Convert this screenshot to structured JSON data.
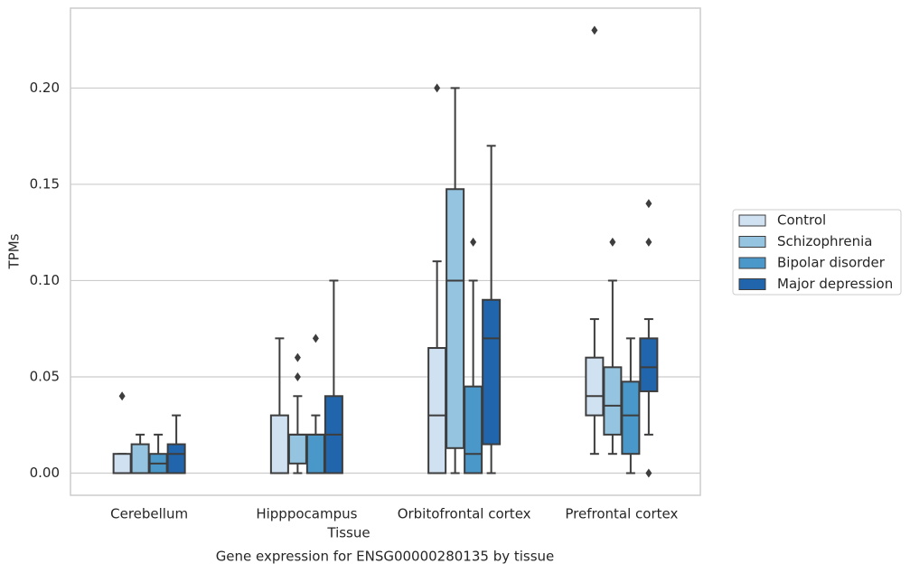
{
  "chart_data": {
    "type": "box",
    "xlabel": "Tissue",
    "ylabel": "TPMs",
    "caption": "Gene expression for ENSG00000280135 by tissue",
    "categories": [
      "Cerebellum",
      "Hipppocampus",
      "Orbitofrontal cortex",
      "Prefrontal cortex"
    ],
    "ylim": [
      -0.0115,
      0.2415
    ],
    "yticks": [
      {
        "value": 0,
        "label": "0.00"
      },
      {
        "value": 0.05,
        "label": "0.05"
      },
      {
        "value": 0.1,
        "label": "0.10"
      },
      {
        "value": 0.15,
        "label": "0.15"
      },
      {
        "value": 0.2,
        "label": "0.20"
      }
    ],
    "grid": true,
    "legend": "right",
    "series": [
      {
        "name": "Control",
        "color": "#d0e1f2",
        "boxes": [
          {
            "whislo": 0,
            "q1": 0,
            "med": 0,
            "q3": 0.01,
            "whishi": 0.01,
            "fliers": [
              0.04
            ]
          },
          {
            "whislo": 0,
            "q1": 0,
            "med": 0,
            "q3": 0.03,
            "whishi": 0.07,
            "fliers": []
          },
          {
            "whislo": 0,
            "q1": 0,
            "med": 0.03,
            "q3": 0.065,
            "whishi": 0.11,
            "fliers": [
              0.2
            ]
          },
          {
            "whislo": 0.01,
            "q1": 0.03,
            "med": 0.04,
            "q3": 0.06,
            "whishi": 0.08,
            "fliers": [
              0.23
            ]
          }
        ]
      },
      {
        "name": "Schizophrenia",
        "color": "#94c4df",
        "boxes": [
          {
            "whislo": 0,
            "q1": 0,
            "med": 0,
            "q3": 0.015,
            "whishi": 0.02,
            "fliers": []
          },
          {
            "whislo": 0,
            "q1": 0.005,
            "med": 0.02,
            "q3": 0.02,
            "whishi": 0.04,
            "fliers": [
              0.05,
              0.06
            ]
          },
          {
            "whislo": 0,
            "q1": 0.013,
            "med": 0.1,
            "q3": 0.1475,
            "whishi": 0.2,
            "fliers": []
          },
          {
            "whislo": 0.01,
            "q1": 0.02,
            "med": 0.035,
            "q3": 0.055,
            "whishi": 0.1,
            "fliers": [
              0.12
            ]
          }
        ]
      },
      {
        "name": "Bipolar disorder",
        "color": "#4a98c9",
        "boxes": [
          {
            "whislo": 0,
            "q1": 0,
            "med": 0.005,
            "q3": 0.01,
            "whishi": 0.02,
            "fliers": []
          },
          {
            "whislo": 0,
            "q1": 0,
            "med": 0.02,
            "q3": 0.02,
            "whishi": 0.03,
            "fliers": [
              0.07
            ]
          },
          {
            "whislo": 0,
            "q1": 0,
            "med": 0.01,
            "q3": 0.045,
            "whishi": 0.1,
            "fliers": [
              0.12
            ]
          },
          {
            "whislo": 0,
            "q1": 0.01,
            "med": 0.03,
            "q3": 0.0475,
            "whishi": 0.07,
            "fliers": []
          }
        ]
      },
      {
        "name": "Major depression",
        "color": "#2166ac",
        "boxes": [
          {
            "whislo": 0,
            "q1": 0,
            "med": 0.01,
            "q3": 0.015,
            "whishi": 0.03,
            "fliers": []
          },
          {
            "whislo": 0,
            "q1": 0,
            "med": 0.02,
            "q3": 0.04,
            "whishi": 0.1,
            "fliers": []
          },
          {
            "whislo": 0,
            "q1": 0.015,
            "med": 0.07,
            "q3": 0.09,
            "whishi": 0.17,
            "fliers": []
          },
          {
            "whislo": 0.02,
            "q1": 0.0425,
            "med": 0.055,
            "q3": 0.07,
            "whishi": 0.08,
            "fliers": [
              0.12,
              0.14,
              0
            ]
          }
        ]
      }
    ]
  }
}
